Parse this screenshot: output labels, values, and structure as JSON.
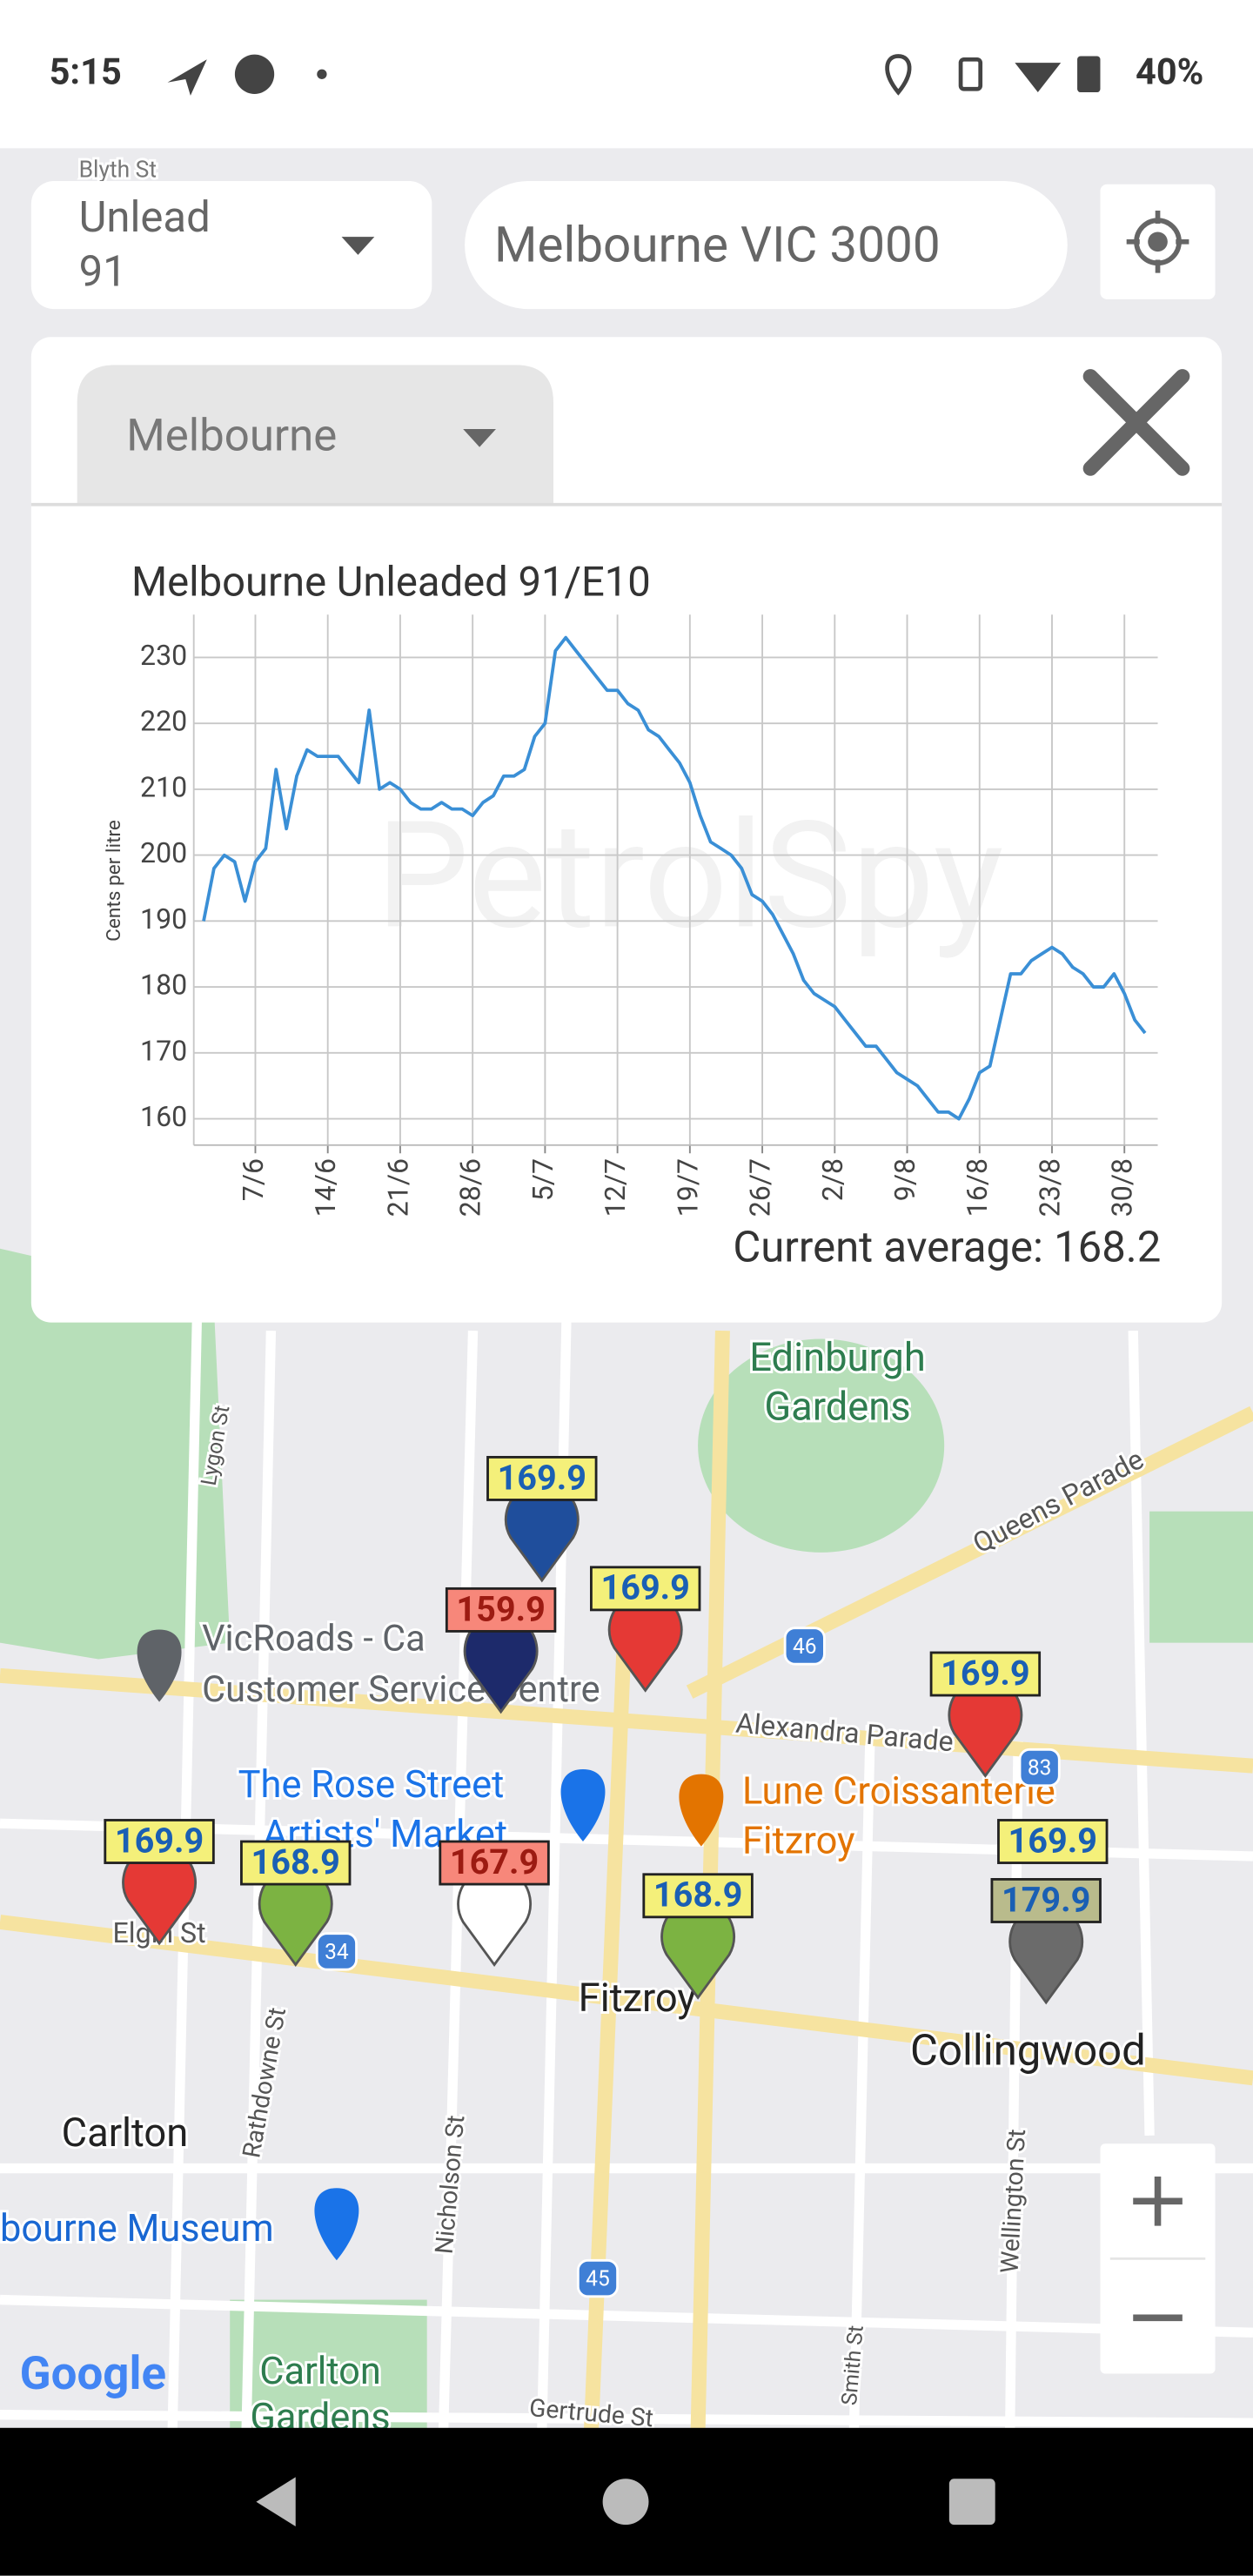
{
  "status_bar": {
    "time": "5:15",
    "battery": "40%"
  },
  "controls": {
    "fuel_type": [
      "Unlead",
      "91"
    ],
    "location": "Melbourne VIC 3000"
  },
  "panel": {
    "region": "Melbourne",
    "footer": "Current average: 168.2"
  },
  "chart_data": {
    "type": "line",
    "title": "Melbourne Unleaded 91/E10",
    "y_label": "Cents per litre",
    "watermark": "PetrolSpy",
    "categories": [
      null,
      null,
      null,
      null,
      null,
      "7/6",
      null,
      null,
      null,
      null,
      null,
      null,
      "14/6",
      null,
      null,
      null,
      null,
      null,
      null,
      "21/6",
      null,
      null,
      null,
      null,
      null,
      null,
      "28/6",
      null,
      null,
      null,
      null,
      null,
      null,
      "5/7",
      null,
      null,
      null,
      null,
      null,
      null,
      "12/7",
      null,
      null,
      null,
      null,
      null,
      null,
      "19/7",
      null,
      null,
      null,
      null,
      null,
      null,
      "26/7",
      null,
      null,
      null,
      null,
      null,
      null,
      "2/8",
      null,
      null,
      null,
      null,
      null,
      null,
      "9/8",
      null,
      null,
      null,
      null,
      null,
      null,
      "16/8",
      null,
      null,
      null,
      null,
      null,
      null,
      "23/8",
      null,
      null,
      null,
      null,
      null,
      null,
      "30/8",
      null,
      null
    ],
    "values": [
      190,
      198,
      200,
      199,
      193,
      199,
      201,
      213,
      204,
      212,
      216,
      215,
      215,
      215,
      213,
      211,
      222,
      210,
      211,
      210,
      208,
      207,
      207,
      208,
      207,
      207,
      206,
      208,
      209,
      212,
      212,
      213,
      218,
      220,
      231,
      233,
      231,
      229,
      227,
      225,
      225,
      223,
      222,
      219,
      218,
      216,
      214,
      211,
      206,
      202,
      201,
      200,
      198,
      194,
      193,
      191,
      188,
      185,
      181,
      179,
      178,
      177,
      175,
      173,
      171,
      171,
      169,
      167,
      166,
      165,
      163,
      161,
      161,
      160,
      163,
      167,
      168,
      175,
      182,
      182,
      184,
      185,
      186,
      185,
      183,
      182,
      180,
      180,
      182,
      179,
      175,
      173
    ],
    "color": "#3a8fd6",
    "ylim": [
      156,
      236.5
    ],
    "yticks": [
      160,
      170,
      180,
      190,
      200,
      210,
      220,
      230
    ],
    "grid": true
  },
  "map": {
    "labels": [
      "Blyth St",
      "Edinburgh",
      "Gardens",
      "Queens Parade",
      "VicRoads - Ca",
      "Customer Service Centre",
      "Alexandra Parade",
      "The Rose Street",
      "Artists' Market",
      "Lune Croissanterie",
      "Fitzroy",
      "Fitzroy",
      "Collingwood",
      "Carlton",
      "bourne Museum",
      "Carlton",
      "Gardens",
      "Lygon St",
      "Rathdowne St",
      "Nicholson St",
      "Wellington St",
      "Smith St",
      "Gertrude St",
      "Elgin St"
    ],
    "route_shields": [
      "46",
      "34",
      "45",
      "83"
    ],
    "stations": [
      {
        "price": 169.9,
        "label_color": "#f4f07a",
        "text_color": "#1a5fb4",
        "pin_color": "#1f4e9c"
      },
      {
        "price": 159.9,
        "label_color": "#f7877a",
        "text_color": "#9c1b12",
        "pin_color": "#1d2a6b"
      },
      {
        "price": 169.9,
        "label_color": "#f4f07a",
        "text_color": "#1a5fb4",
        "pin_color": "#e53935"
      },
      {
        "price": 169.9,
        "label_color": "#f4f07a",
        "text_color": "#1a5fb4",
        "pin_color": "#e53935"
      },
      {
        "price": 169.9,
        "label_color": "#f4f07a",
        "text_color": "#1a5fb4",
        "pin_color": "#e53935"
      },
      {
        "price": 168.9,
        "label_color": "#f4f07a",
        "text_color": "#1a5fb4",
        "pin_color": "#7cb342"
      },
      {
        "price": 167.9,
        "label_color": "#f7877a",
        "text_color": "#9c1b12",
        "pin_color": "#ffffff"
      },
      {
        "price": 168.9,
        "label_color": "#f4f07a",
        "text_color": "#1a5fb4",
        "pin_color": "#7cb342"
      },
      {
        "price": 169.9,
        "label_color": "#f4f07a",
        "text_color": "#1a5fb4",
        "pin_color": "#6b6b6b"
      },
      {
        "price": 179.9,
        "label_color": "#b9bb8c",
        "text_color": "#1a5fb4",
        "pin_color": "#6b6b6b"
      }
    ],
    "attribution": "Google"
  }
}
